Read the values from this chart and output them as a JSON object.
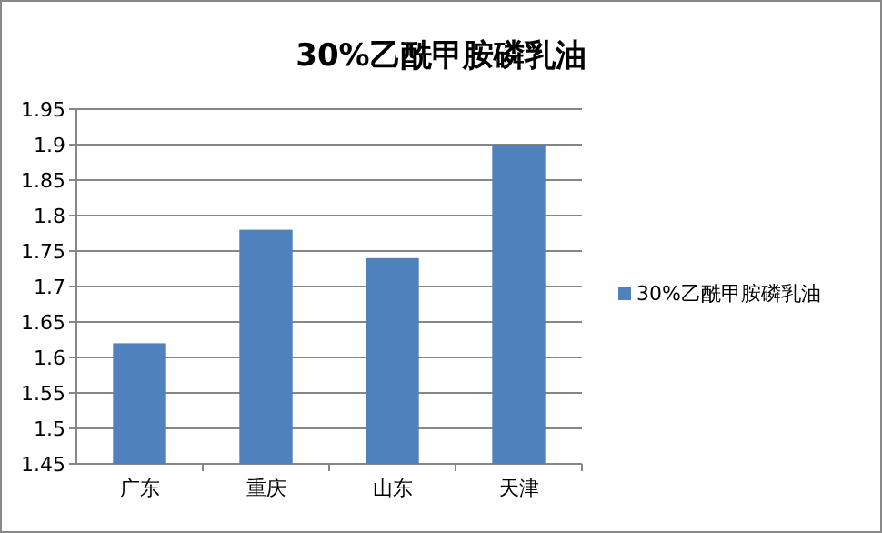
{
  "chart_data": {
    "type": "bar",
    "title": "30%乙酰甲胺磷乳油",
    "categories": [
      "广东",
      "重庆",
      "山东",
      "天津"
    ],
    "series": [
      {
        "name": "30%乙酰甲胺磷乳油",
        "color": "#4f81bd",
        "values": [
          1.62,
          1.78,
          1.74,
          1.9
        ]
      }
    ],
    "ylim": [
      1.45,
      1.95
    ],
    "yticks": [
      1.45,
      1.5,
      1.55,
      1.6,
      1.65,
      1.7,
      1.75,
      1.8,
      1.85,
      1.9,
      1.95
    ],
    "grid": "y",
    "legend": "right"
  }
}
